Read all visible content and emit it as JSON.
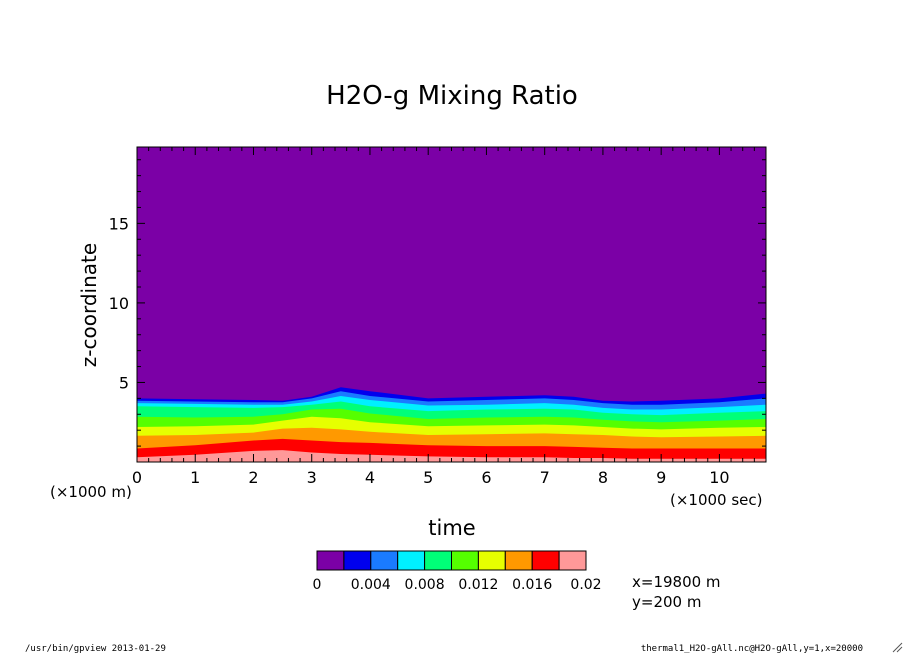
{
  "chart_data": {
    "type": "filled-contour",
    "title": "H2O-g Mixing Ratio",
    "xlabel": "time",
    "ylabel": "z-coordinate",
    "x_unit_label": "(×1000 sec)",
    "y_unit_label": "(×1000 m)",
    "xlim": [
      0,
      10.8
    ],
    "ylim": [
      0,
      19.8
    ],
    "x_ticks": [
      "0",
      "1",
      "2",
      "3",
      "4",
      "5",
      "6",
      "7",
      "8",
      "9",
      "10"
    ],
    "y_ticks": [
      "5",
      "10",
      "15"
    ],
    "levels": [
      0,
      0.002,
      0.004,
      0.006,
      0.008,
      0.01,
      0.012,
      0.014,
      0.016,
      0.018,
      0.02
    ],
    "colorbar_labels": [
      "0",
      "0.004",
      "0.008",
      "0.012",
      "0.016",
      "0.02"
    ],
    "colors": [
      "#7b00a6",
      "#0000ee",
      "#1a7bff",
      "#00f0ff",
      "#00ff78",
      "#55ff00",
      "#e6ff00",
      "#ff9900",
      "#ff0000",
      "#ff9999"
    ],
    "contour_x": [
      0,
      1,
      2,
      2.5,
      3,
      3.5,
      4,
      5,
      6,
      7,
      7.5,
      8,
      8.5,
      9,
      10,
      10.8
    ],
    "contour_tops": [
      [
        4.0,
        3.95,
        3.9,
        3.85,
        4.1,
        4.7,
        4.45,
        4.0,
        4.1,
        4.2,
        4.1,
        3.85,
        3.8,
        3.85,
        4.0,
        4.3
      ],
      [
        3.85,
        3.8,
        3.75,
        3.75,
        4.0,
        4.45,
        4.15,
        3.8,
        3.9,
        4.0,
        3.9,
        3.7,
        3.6,
        3.6,
        3.75,
        4.0
      ],
      [
        3.7,
        3.65,
        3.6,
        3.6,
        3.8,
        4.15,
        3.9,
        3.55,
        3.6,
        3.7,
        3.6,
        3.4,
        3.3,
        3.3,
        3.45,
        3.6
      ],
      [
        3.5,
        3.45,
        3.4,
        3.45,
        3.6,
        3.8,
        3.5,
        3.2,
        3.3,
        3.35,
        3.3,
        3.1,
        3.0,
        2.95,
        3.1,
        3.2
      ],
      [
        2.85,
        2.8,
        2.85,
        3.0,
        3.3,
        3.35,
        3.05,
        2.7,
        2.8,
        2.85,
        2.8,
        2.65,
        2.55,
        2.5,
        2.6,
        2.7
      ],
      [
        2.2,
        2.25,
        2.35,
        2.6,
        2.85,
        2.75,
        2.5,
        2.25,
        2.3,
        2.35,
        2.3,
        2.2,
        2.1,
        2.05,
        2.15,
        2.2
      ],
      [
        1.65,
        1.7,
        1.85,
        2.1,
        2.15,
        2.05,
        1.9,
        1.7,
        1.75,
        1.8,
        1.75,
        1.7,
        1.6,
        1.55,
        1.6,
        1.65
      ],
      [
        0.85,
        1.05,
        1.35,
        1.45,
        1.35,
        1.25,
        1.2,
        1.05,
        1.0,
        1.0,
        0.95,
        0.9,
        0.85,
        0.85,
        0.85,
        0.85
      ],
      [
        0.3,
        0.45,
        0.7,
        0.75,
        0.6,
        0.5,
        0.45,
        0.35,
        0.3,
        0.3,
        0.25,
        0.25,
        0.2,
        0.2,
        0.2,
        0.2
      ]
    ],
    "annotations": [
      "x=19800 m",
      "y=200 m"
    ]
  },
  "footer": {
    "left": "/usr/bin/gpview  2013-01-29",
    "right": "thermal1_H2O-gAll.nc@H2O-gAll,y=1,x=20000"
  }
}
